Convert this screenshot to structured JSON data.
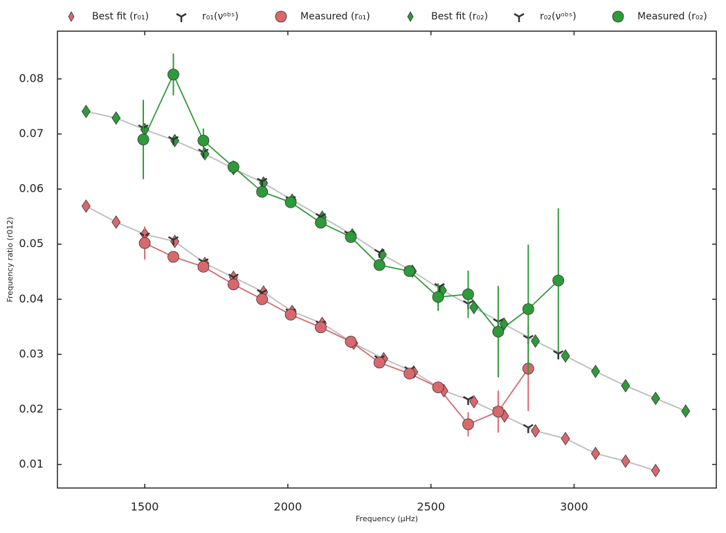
{
  "chart_data": {
    "type": "line",
    "xlabel": "Frequency (μHz)",
    "ylabel": "Frequency ratio (r012)",
    "xlim": [
      1195,
      3497
    ],
    "ylim": [
      0.00573,
      0.08867
    ],
    "xticks": [
      1500,
      2000,
      2500,
      3000
    ],
    "yticks": [
      0.01,
      0.02,
      0.03,
      0.04,
      0.05,
      0.06,
      0.07,
      0.08
    ],
    "legend": "top",
    "series": [
      {
        "name": "Best fit (r₀₁)",
        "marker": "diamond",
        "color": "#d9686d",
        "line_color": "#c0c0c0",
        "x": [
          1295,
          1400,
          1500,
          1605,
          1710,
          1810,
          1915,
          2015,
          2120,
          2230,
          2335,
          2440,
          2545,
          2650,
          2757,
          2865,
          2970,
          3075,
          3180,
          3285
        ],
        "values": [
          0.0569,
          0.054,
          0.0518,
          0.0505,
          0.0465,
          0.044,
          0.0413,
          0.0378,
          0.0356,
          0.032,
          0.0292,
          0.0268,
          0.0234,
          0.0214,
          0.0188,
          0.0161,
          0.0147,
          0.012,
          0.0106,
          0.0089
        ]
      },
      {
        "name": "r₀₁(νᵒᵇˢ)",
        "marker": "tri_up",
        "color": "#333333",
        "x": [
          1500,
          1600,
          1705,
          1810,
          1910,
          2010,
          2115,
          2220,
          2320,
          2425,
          2525,
          2630,
          2735,
          2840
        ],
        "values": [
          0.0515,
          0.0508,
          0.0468,
          0.044,
          0.0412,
          0.0377,
          0.0355,
          0.0322,
          0.0292,
          0.0272,
          0.024,
          0.0218,
          0.0198,
          0.0167
        ]
      },
      {
        "name": "Measured (r₀₁)",
        "marker": "circle",
        "color": "#d9686d",
        "line_color": "#d9686d",
        "x": [
          1500,
          1600,
          1705,
          1810,
          1910,
          2010,
          2115,
          2220,
          2320,
          2425,
          2525,
          2630,
          2735,
          2840
        ],
        "values": [
          0.0502,
          0.0477,
          0.0459,
          0.0427,
          0.04,
          0.0372,
          0.0349,
          0.0323,
          0.0285,
          0.0265,
          0.024,
          0.0173,
          0.0196,
          0.0274
        ],
        "errors": [
          0.003,
          0.0006,
          0.0006,
          0.0005,
          0.0005,
          0.0005,
          0.0005,
          0.0005,
          0.0005,
          0.0005,
          0.0006,
          0.0022,
          0.0038,
          0.0077
        ]
      },
      {
        "name": "Best fit (r₀₂)",
        "marker": "diamond",
        "color": "#2e9a3a",
        "line_color": "#c0c0c0",
        "x": [
          1295,
          1400,
          1500,
          1605,
          1710,
          1810,
          1915,
          2015,
          2120,
          2225,
          2330,
          2435,
          2540,
          2650,
          2755,
          2865,
          2970,
          3075,
          3180,
          3285,
          3390
        ],
        "values": [
          0.0741,
          0.0729,
          0.0708,
          0.0688,
          0.0664,
          0.0637,
          0.0611,
          0.058,
          0.0549,
          0.0517,
          0.0481,
          0.0451,
          0.0416,
          0.0385,
          0.0355,
          0.0324,
          0.0297,
          0.0269,
          0.0243,
          0.022,
          0.0197
        ]
      },
      {
        "name": "r₀₂(νᵒᵇˢ)",
        "marker": "tri_down",
        "color": "#333333",
        "x": [
          1495,
          1600,
          1705,
          1810,
          1910,
          2010,
          2115,
          2215,
          2320,
          2425,
          2530,
          2630,
          2735,
          2840,
          2945
        ],
        "values": [
          0.0711,
          0.069,
          0.0667,
          0.064,
          0.0614,
          0.0581,
          0.055,
          0.0518,
          0.0485,
          0.0453,
          0.0423,
          0.0392,
          0.0359,
          0.0329,
          0.0301
        ]
      },
      {
        "name": "Measured (r₀₂)",
        "marker": "circle",
        "color": "#2e9a3a",
        "line_color": "#2e9a3a",
        "x": [
          1495,
          1600,
          1705,
          1810,
          1910,
          2010,
          2115,
          2220,
          2320,
          2425,
          2525,
          2630,
          2735,
          2840,
          2945
        ],
        "values": [
          0.069,
          0.0808,
          0.0688,
          0.064,
          0.0595,
          0.0576,
          0.0539,
          0.0513,
          0.0462,
          0.0451,
          0.0404,
          0.0409,
          0.0341,
          0.0382,
          0.0434
        ],
        "errors": [
          0.0072,
          0.0038,
          0.0022,
          0.0012,
          0.0006,
          0.0006,
          0.0006,
          0.0006,
          0.0006,
          0.0008,
          0.0025,
          0.0043,
          0.0083,
          0.0117,
          0.0131
        ]
      }
    ]
  }
}
